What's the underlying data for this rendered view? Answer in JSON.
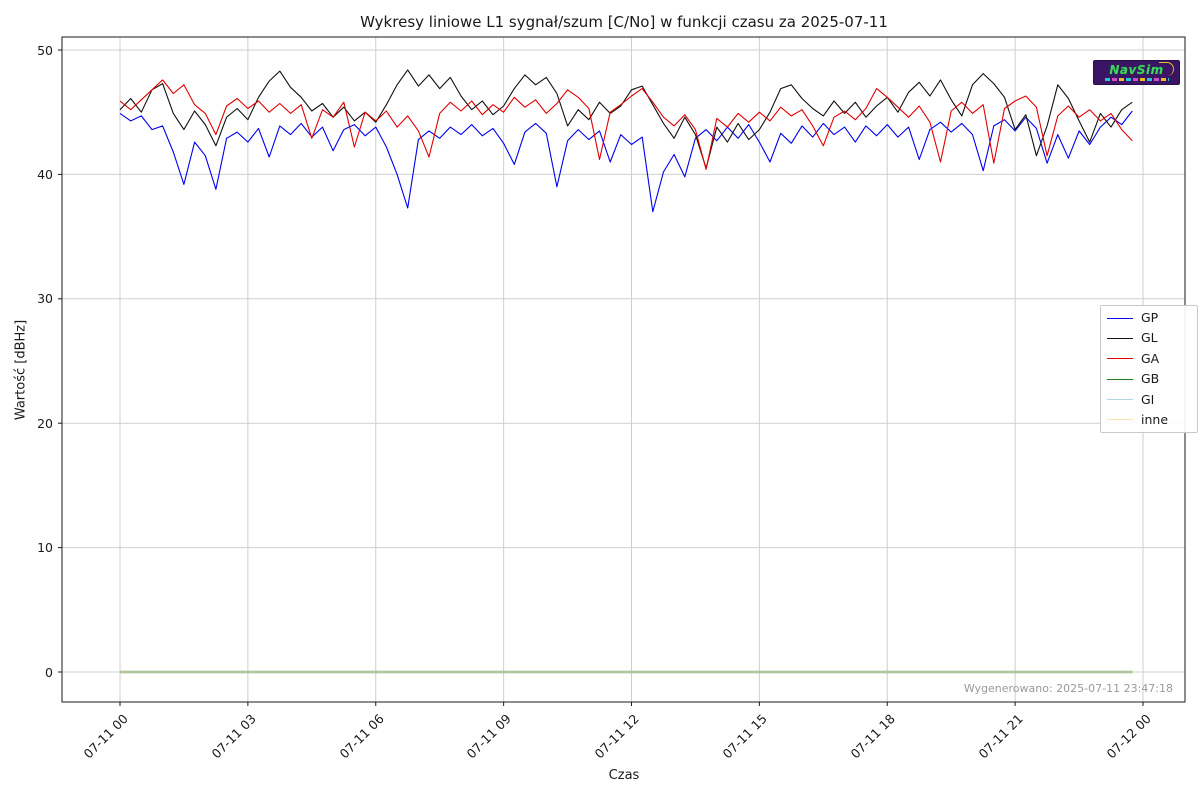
{
  "chart": {
    "title": "Wykresy liniowe L1 sygnał/szum [C/No] w funkcji czasu za 2025-07-11",
    "generated_text": "Wygenerowano: 2025-07-11 23:47:18"
  },
  "watermark": {
    "text": "NavSim"
  },
  "chart_data": {
    "type": "line",
    "title": "Wykresy liniowe L1 sygnał/szum [C/No] w funkcji czasu za 2025-07-11",
    "xlabel": "Czas",
    "ylabel": "Wartość [dBHz]",
    "grid": true,
    "legend_position": "right",
    "ylim": [
      -2.4,
      51.05
    ],
    "xlim_hours": [
      -1.35,
      25.0
    ],
    "yticks": [
      0,
      10,
      20,
      30,
      40,
      50
    ],
    "xticks": [
      {
        "t": 0,
        "label": "07-11 00"
      },
      {
        "t": 3,
        "label": "07-11 03"
      },
      {
        "t": 6,
        "label": "07-11 06"
      },
      {
        "t": 9,
        "label": "07-11 09"
      },
      {
        "t": 12,
        "label": "07-11 12"
      },
      {
        "t": 15,
        "label": "07-11 15"
      },
      {
        "t": 18,
        "label": "07-11 18"
      },
      {
        "t": 21,
        "label": "07-11 21"
      },
      {
        "t": 24,
        "label": "07-12 00"
      }
    ],
    "x_start_hour": 0,
    "x_step_hours": 0.25,
    "series": [
      {
        "name": "GP",
        "color": "#0000ee",
        "width": 1.1,
        "values": [
          44.9,
          44.3,
          44.7,
          43.6,
          43.9,
          41.8,
          39.2,
          42.6,
          41.5,
          38.8,
          42.9,
          43.4,
          42.6,
          43.7,
          41.4,
          43.9,
          43.2,
          44.1,
          43.0,
          43.8,
          41.9,
          43.6,
          44.0,
          43.1,
          43.8,
          42.2,
          40.0,
          37.3,
          42.8,
          43.5,
          42.9,
          43.8,
          43.2,
          44.0,
          43.1,
          43.7,
          42.5,
          40.8,
          43.4,
          44.1,
          43.3,
          39.0,
          42.7,
          43.6,
          42.8,
          43.5,
          41.0,
          43.2,
          42.4,
          43.0,
          37.0,
          40.2,
          41.6,
          39.8,
          42.9,
          43.6,
          42.7,
          43.8,
          42.9,
          44.0,
          42.6,
          41.0,
          43.3,
          42.5,
          43.9,
          43.0,
          44.1,
          43.2,
          43.8,
          42.6,
          43.9,
          43.1,
          44.0,
          43.0,
          43.8,
          41.2,
          43.6,
          44.2,
          43.4,
          44.1,
          43.2,
          40.3,
          43.9,
          44.4,
          43.5,
          44.6,
          43.7,
          40.9,
          43.2,
          41.3,
          43.5,
          42.4,
          43.8,
          44.6,
          44.0,
          45.1
        ]
      },
      {
        "name": "GL",
        "color": "#111111",
        "width": 1.1,
        "values": [
          45.2,
          46.1,
          45.0,
          46.8,
          47.3,
          44.9,
          43.6,
          45.1,
          44.0,
          42.3,
          44.6,
          45.3,
          44.4,
          46.2,
          47.5,
          48.3,
          47.0,
          46.2,
          45.1,
          45.7,
          44.6,
          45.4,
          44.3,
          45.0,
          44.2,
          45.6,
          47.2,
          48.4,
          47.1,
          48.0,
          46.9,
          47.8,
          46.3,
          45.2,
          45.9,
          44.8,
          45.5,
          46.9,
          48.0,
          47.2,
          47.8,
          46.5,
          43.9,
          45.2,
          44.4,
          45.8,
          44.9,
          45.5,
          46.8,
          47.1,
          45.6,
          44.1,
          42.9,
          44.6,
          43.2,
          40.5,
          43.8,
          42.6,
          44.1,
          42.8,
          43.6,
          45.0,
          46.9,
          47.2,
          46.1,
          45.3,
          44.7,
          45.9,
          44.9,
          45.8,
          44.6,
          45.5,
          46.2,
          45.0,
          46.6,
          47.4,
          46.3,
          47.6,
          46.0,
          44.7,
          47.2,
          48.1,
          47.3,
          46.2,
          43.6,
          44.8,
          41.5,
          43.9,
          47.2,
          46.1,
          44.3,
          42.6,
          44.9,
          43.8,
          45.2,
          45.8
        ]
      },
      {
        "name": "GA",
        "color": "#e00000",
        "width": 1.1,
        "values": [
          45.9,
          45.2,
          46.0,
          46.8,
          47.6,
          46.5,
          47.2,
          45.6,
          44.9,
          43.2,
          45.5,
          46.1,
          45.3,
          45.9,
          45.0,
          45.7,
          44.9,
          45.6,
          42.9,
          45.2,
          44.6,
          45.8,
          42.2,
          45.0,
          44.3,
          45.1,
          43.8,
          44.7,
          43.5,
          41.4,
          44.9,
          45.8,
          45.1,
          45.9,
          44.8,
          45.6,
          45.0,
          46.2,
          45.4,
          46.0,
          44.9,
          45.7,
          46.8,
          46.2,
          45.3,
          41.2,
          45.0,
          45.6,
          46.3,
          46.9,
          45.8,
          44.6,
          43.9,
          44.8,
          43.6,
          40.4,
          44.5,
          43.8,
          44.9,
          44.2,
          45.0,
          44.3,
          45.4,
          44.7,
          45.2,
          43.9,
          42.3,
          44.6,
          45.1,
          44.4,
          45.3,
          46.9,
          46.2,
          45.4,
          44.6,
          45.5,
          44.2,
          41.0,
          45.1,
          45.8,
          44.9,
          45.6,
          40.9,
          45.3,
          45.9,
          46.3,
          45.4,
          41.5,
          44.7,
          45.5,
          44.6,
          45.2,
          44.3,
          44.9,
          43.6,
          42.7
        ]
      },
      {
        "name": "GB",
        "color": "#1f7a1f",
        "width": 2.2,
        "const": 0,
        "t_range": [
          0,
          23.75
        ]
      },
      {
        "name": "GI",
        "color": "#b0d8e8",
        "width": 1.5,
        "const": 0,
        "t_range": [
          0,
          23.75
        ]
      },
      {
        "name": "inne",
        "color": "#ffe0b3",
        "width": 0.9,
        "const": 0,
        "t_range": [
          0,
          23.75
        ]
      }
    ]
  }
}
